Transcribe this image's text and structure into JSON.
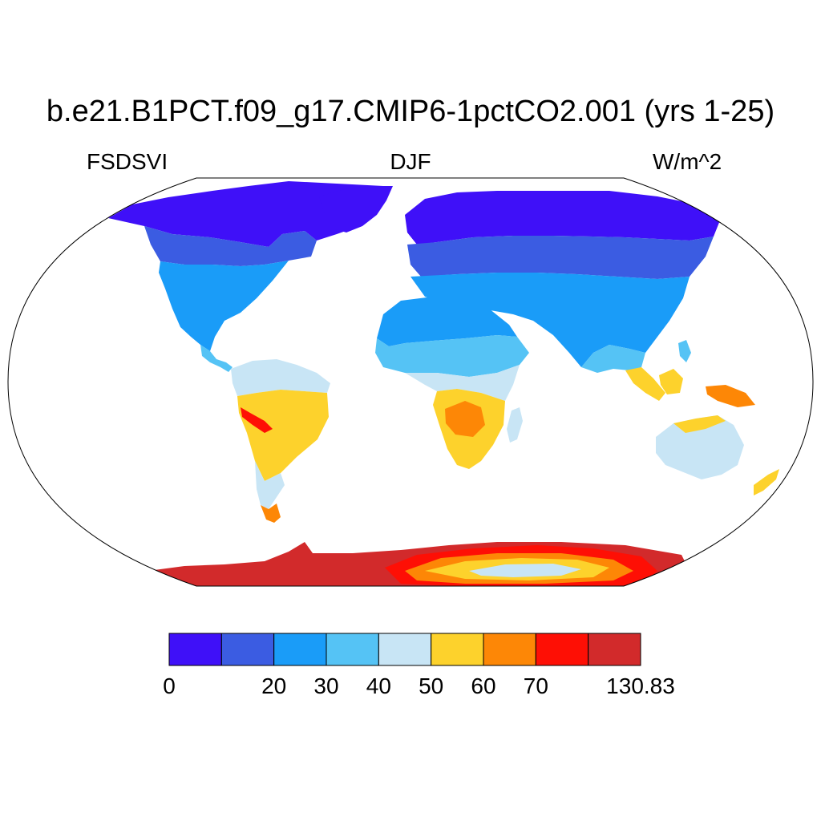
{
  "title": "b.e21.B1PCT.f09_g17.CMIP6-1pctCO2.001 (yrs 1-25)",
  "variable": "FSDSVI",
  "season": "DJF",
  "units": "W/m^2",
  "colorbar": {
    "colors": [
      "#3f10f8",
      "#3b5ce2",
      "#1a9cf8",
      "#55c3f5",
      "#c8e5f5",
      "#fdd22c",
      "#fd8706",
      "#fe0f05",
      "#d22a2b"
    ],
    "labels": [
      {
        "text": "0",
        "boundary": 0
      },
      {
        "text": "20",
        "boundary": 2
      },
      {
        "text": "30",
        "boundary": 3
      },
      {
        "text": "40",
        "boundary": 4
      },
      {
        "text": "50",
        "boundary": 5
      },
      {
        "text": "60",
        "boundary": 6
      },
      {
        "text": "70",
        "boundary": 7
      },
      {
        "text": "130.83",
        "boundary": 9
      }
    ]
  }
}
